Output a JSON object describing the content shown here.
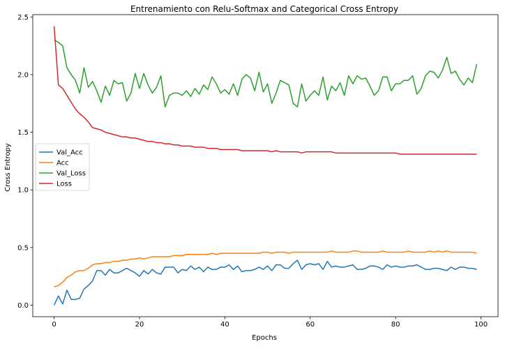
{
  "chart_data": {
    "type": "line",
    "title": "Entrenamiento con Relu-Softmax and Categorical Cross Entropy",
    "xlabel": "Epochs",
    "ylabel": "Cross Entropy",
    "xlim": [
      -5,
      104
    ],
    "ylim": [
      -0.1,
      2.52
    ],
    "xticks": [
      0,
      20,
      40,
      60,
      80,
      100
    ],
    "yticks": [
      0.0,
      0.5,
      1.0,
      1.5,
      2.0,
      2.5
    ],
    "xtick_labels": [
      "0",
      "20",
      "40",
      "60",
      "80",
      "100"
    ],
    "ytick_labels": [
      "0.0",
      "0.5",
      "1.0",
      "1.5",
      "2.0",
      "2.5"
    ],
    "grid": false,
    "legend_position": "center-left",
    "series": [
      {
        "name": "Val_Acc",
        "color": "#1f77b4",
        "values": [
          0.0,
          0.08,
          0.01,
          0.13,
          0.05,
          0.05,
          0.06,
          0.14,
          0.17,
          0.21,
          0.3,
          0.3,
          0.26,
          0.31,
          0.28,
          0.28,
          0.3,
          0.32,
          0.3,
          0.28,
          0.25,
          0.3,
          0.27,
          0.31,
          0.28,
          0.27,
          0.33,
          0.33,
          0.33,
          0.28,
          0.31,
          0.3,
          0.34,
          0.31,
          0.33,
          0.29,
          0.33,
          0.31,
          0.31,
          0.33,
          0.33,
          0.35,
          0.31,
          0.34,
          0.29,
          0.3,
          0.3,
          0.31,
          0.33,
          0.31,
          0.34,
          0.3,
          0.35,
          0.35,
          0.32,
          0.32,
          0.36,
          0.39,
          0.31,
          0.35,
          0.36,
          0.35,
          0.36,
          0.31,
          0.38,
          0.33,
          0.34,
          0.33,
          0.33,
          0.34,
          0.35,
          0.31,
          0.31,
          0.32,
          0.34,
          0.34,
          0.33,
          0.31,
          0.35,
          0.33,
          0.34,
          0.33,
          0.33,
          0.34,
          0.34,
          0.35,
          0.33,
          0.31,
          0.31,
          0.32,
          0.32,
          0.31,
          0.3,
          0.33,
          0.31,
          0.33,
          0.33,
          0.32,
          0.32,
          0.31
        ]
      },
      {
        "name": "Acc",
        "color": "#ff7f0e",
        "values": [
          0.16,
          0.17,
          0.2,
          0.24,
          0.26,
          0.29,
          0.3,
          0.3,
          0.32,
          0.35,
          0.36,
          0.36,
          0.37,
          0.37,
          0.38,
          0.38,
          0.39,
          0.39,
          0.4,
          0.4,
          0.41,
          0.4,
          0.41,
          0.42,
          0.42,
          0.42,
          0.42,
          0.42,
          0.43,
          0.43,
          0.43,
          0.44,
          0.44,
          0.44,
          0.44,
          0.44,
          0.44,
          0.45,
          0.44,
          0.45,
          0.45,
          0.45,
          0.45,
          0.45,
          0.45,
          0.45,
          0.45,
          0.45,
          0.45,
          0.46,
          0.46,
          0.45,
          0.46,
          0.46,
          0.46,
          0.45,
          0.46,
          0.46,
          0.46,
          0.46,
          0.46,
          0.46,
          0.46,
          0.46,
          0.46,
          0.47,
          0.46,
          0.46,
          0.46,
          0.46,
          0.47,
          0.47,
          0.46,
          0.46,
          0.46,
          0.46,
          0.46,
          0.47,
          0.46,
          0.46,
          0.46,
          0.46,
          0.46,
          0.47,
          0.46,
          0.46,
          0.46,
          0.46,
          0.47,
          0.46,
          0.47,
          0.46,
          0.47,
          0.46,
          0.46,
          0.46,
          0.46,
          0.46,
          0.46,
          0.45
        ]
      },
      {
        "name": "Val_Loss",
        "color": "#2ca02c",
        "values": [
          2.3,
          2.28,
          2.25,
          2.06,
          2.0,
          1.95,
          1.84,
          2.06,
          1.89,
          1.94,
          1.86,
          1.76,
          1.9,
          1.82,
          1.95,
          1.92,
          1.93,
          1.77,
          1.84,
          2.01,
          1.88,
          2.01,
          1.91,
          1.84,
          1.89,
          1.99,
          1.72,
          1.82,
          1.84,
          1.84,
          1.82,
          1.86,
          1.81,
          1.88,
          1.83,
          1.91,
          1.87,
          1.98,
          1.92,
          1.84,
          1.87,
          1.83,
          1.92,
          1.82,
          1.96,
          2.0,
          1.97,
          1.86,
          2.02,
          1.85,
          1.92,
          1.75,
          1.84,
          1.95,
          1.93,
          1.91,
          1.75,
          1.72,
          1.92,
          1.77,
          1.82,
          1.86,
          1.82,
          1.98,
          1.78,
          1.9,
          1.86,
          1.93,
          1.82,
          1.99,
          1.92,
          1.99,
          1.96,
          1.97,
          1.9,
          1.82,
          1.86,
          1.98,
          1.98,
          1.86,
          1.92,
          1.92,
          1.95,
          1.95,
          1.99,
          1.83,
          1.88,
          1.99,
          2.03,
          2.02,
          1.97,
          2.04,
          2.15,
          2.01,
          2.03,
          1.96,
          1.91,
          1.97,
          1.93,
          2.09
        ]
      },
      {
        "name": "Loss",
        "color": "#d62728",
        "values": [
          2.42,
          1.91,
          1.88,
          1.82,
          1.76,
          1.7,
          1.66,
          1.63,
          1.59,
          1.54,
          1.53,
          1.52,
          1.5,
          1.49,
          1.48,
          1.47,
          1.46,
          1.46,
          1.45,
          1.45,
          1.44,
          1.43,
          1.42,
          1.42,
          1.41,
          1.41,
          1.4,
          1.4,
          1.39,
          1.39,
          1.38,
          1.38,
          1.38,
          1.37,
          1.37,
          1.37,
          1.36,
          1.36,
          1.36,
          1.35,
          1.35,
          1.35,
          1.35,
          1.35,
          1.34,
          1.34,
          1.34,
          1.34,
          1.34,
          1.34,
          1.34,
          1.33,
          1.34,
          1.33,
          1.33,
          1.33,
          1.33,
          1.33,
          1.32,
          1.33,
          1.33,
          1.33,
          1.33,
          1.33,
          1.33,
          1.33,
          1.32,
          1.32,
          1.32,
          1.32,
          1.32,
          1.32,
          1.32,
          1.32,
          1.32,
          1.32,
          1.32,
          1.32,
          1.32,
          1.32,
          1.32,
          1.31,
          1.31,
          1.31,
          1.31,
          1.31,
          1.31,
          1.31,
          1.31,
          1.31,
          1.31,
          1.31,
          1.31,
          1.31,
          1.31,
          1.31,
          1.31,
          1.31,
          1.31,
          1.31
        ]
      }
    ]
  }
}
